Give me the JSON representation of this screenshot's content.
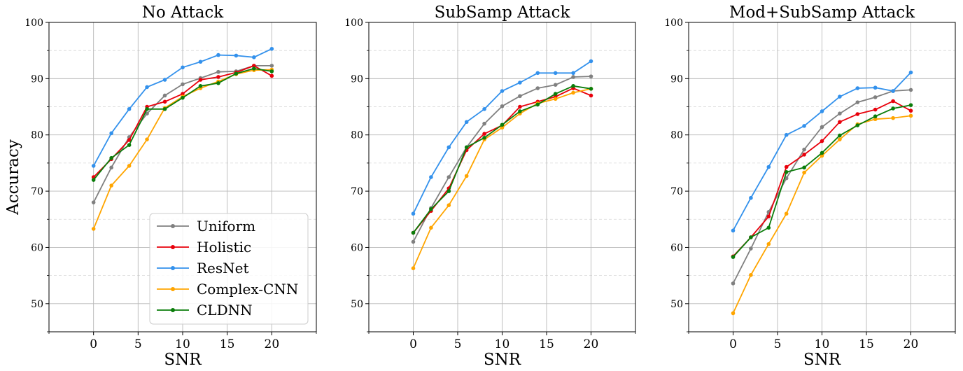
{
  "figure": {
    "ylabel": "Accuracy",
    "legend": {
      "placement": "lower-right of first panel",
      "entries": [
        "Uniform",
        "Holistic",
        "ResNet",
        "Complex-CNN",
        "CLDNN"
      ]
    }
  },
  "colors": {
    "Uniform": "#808080",
    "Holistic": "#e8000b",
    "ResNet": "#3391ec",
    "Complex-CNN": "#ffa500",
    "CLDNN": "#0a7d0a"
  },
  "chart_data": [
    {
      "type": "line",
      "title": "No Attack",
      "xlabel": "SNR",
      "ylabel": "Accuracy",
      "xlim": [
        -5,
        25
      ],
      "ylim": [
        45,
        100
      ],
      "xticks": [
        0,
        5,
        10,
        15,
        20
      ],
      "yticks": [
        50,
        60,
        70,
        80,
        90,
        100
      ],
      "grid": true,
      "x": [
        0,
        2,
        4,
        6,
        8,
        10,
        12,
        14,
        16,
        18,
        20
      ],
      "series": [
        {
          "name": "Uniform",
          "values": [
            68.0,
            74.2,
            79.6,
            83.8,
            87.0,
            89.0,
            90.1,
            91.2,
            91.3,
            92.3,
            92.3
          ]
        },
        {
          "name": "Holistic",
          "values": [
            72.5,
            75.7,
            79.1,
            85.0,
            85.9,
            87.3,
            89.8,
            90.3,
            91.1,
            92.3,
            90.5
          ]
        },
        {
          "name": "ResNet",
          "values": [
            74.5,
            80.3,
            84.6,
            88.5,
            89.8,
            92.0,
            93.0,
            94.2,
            94.1,
            93.8,
            95.3
          ]
        },
        {
          "name": "Complex-CNN",
          "values": [
            63.3,
            71.0,
            74.5,
            79.2,
            84.8,
            86.8,
            88.3,
            89.5,
            90.8,
            91.5,
            91.6
          ]
        },
        {
          "name": "CLDNN",
          "values": [
            72.0,
            75.9,
            78.2,
            84.6,
            84.6,
            86.6,
            88.7,
            89.2,
            90.9,
            91.8,
            91.3
          ]
        }
      ]
    },
    {
      "type": "line",
      "title": "SubSamp Attack",
      "xlabel": "SNR",
      "xlim": [
        -5,
        25
      ],
      "ylim": [
        45,
        100
      ],
      "xticks": [
        0,
        5,
        10,
        15,
        20
      ],
      "yticks": [
        50,
        60,
        70,
        80,
        90,
        100
      ],
      "grid": true,
      "x": [
        0,
        2,
        4,
        6,
        8,
        10,
        12,
        14,
        16,
        18,
        20
      ],
      "series": [
        {
          "name": "Uniform",
          "values": [
            61.0,
            67.0,
            72.5,
            77.8,
            82.0,
            85.1,
            86.9,
            88.3,
            88.9,
            90.3,
            90.4
          ]
        },
        {
          "name": "Holistic",
          "values": [
            62.6,
            66.5,
            70.5,
            77.3,
            80.2,
            81.7,
            85.0,
            85.9,
            86.8,
            88.3,
            87.0
          ]
        },
        {
          "name": "ResNet",
          "values": [
            66.0,
            72.5,
            77.8,
            82.3,
            84.6,
            87.8,
            89.3,
            91.0,
            91.0,
            91.0,
            93.1
          ]
        },
        {
          "name": "Complex-CNN",
          "values": [
            56.3,
            63.5,
            67.5,
            72.7,
            79.2,
            81.3,
            83.8,
            85.6,
            86.4,
            87.5,
            88.2
          ]
        },
        {
          "name": "CLDNN",
          "values": [
            62.6,
            66.8,
            70.0,
            77.8,
            79.5,
            81.8,
            84.2,
            85.4,
            87.3,
            88.7,
            88.2
          ]
        }
      ]
    },
    {
      "type": "line",
      "title": "Mod+SubSamp Attack",
      "xlabel": "SNR",
      "xlim": [
        -5,
        25
      ],
      "ylim": [
        45,
        100
      ],
      "xticks": [
        0,
        5,
        10,
        15,
        20
      ],
      "yticks": [
        50,
        60,
        70,
        80,
        90,
        100
      ],
      "grid": true,
      "x": [
        0,
        2,
        4,
        6,
        8,
        10,
        12,
        14,
        16,
        18,
        20
      ],
      "series": [
        {
          "name": "Uniform",
          "values": [
            53.6,
            59.8,
            66.3,
            72.3,
            77.4,
            81.4,
            83.8,
            85.8,
            86.7,
            87.8,
            88.0
          ]
        },
        {
          "name": "Holistic",
          "values": [
            58.4,
            61.8,
            65.5,
            74.3,
            76.5,
            78.9,
            82.3,
            83.7,
            84.5,
            86.0,
            84.3
          ]
        },
        {
          "name": "ResNet",
          "values": [
            63.0,
            68.8,
            74.3,
            80.0,
            81.6,
            84.2,
            86.8,
            88.3,
            88.4,
            87.8,
            91.1
          ]
        },
        {
          "name": "Complex-CNN",
          "values": [
            48.3,
            55.1,
            60.6,
            66.0,
            73.3,
            76.3,
            79.2,
            81.9,
            82.8,
            83.0,
            83.4
          ]
        },
        {
          "name": "CLDNN",
          "values": [
            58.3,
            61.8,
            63.5,
            73.4,
            74.2,
            76.8,
            79.9,
            81.7,
            83.3,
            84.7,
            85.3
          ]
        }
      ]
    }
  ]
}
